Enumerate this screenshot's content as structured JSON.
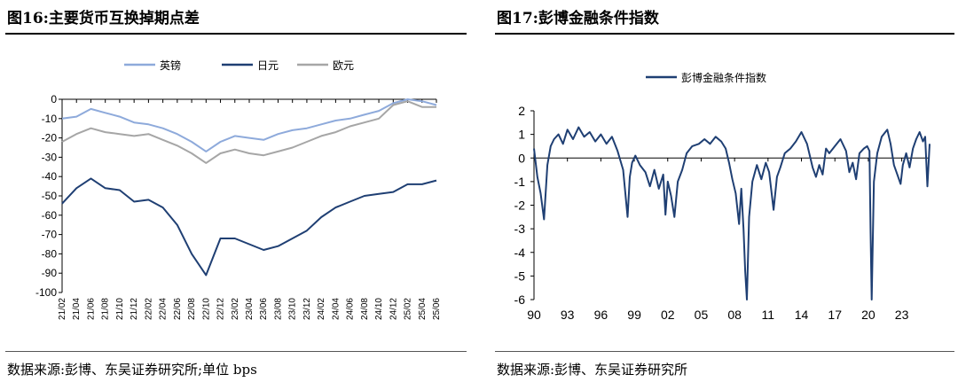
{
  "left": {
    "title": "图16:主要货币互换掉期点差",
    "source": "数据来源:彭博、东吴证券研究所;单位 bps"
  },
  "right": {
    "title": "图17:彭博金融条件指数",
    "source": "数据来源:彭博、东吴证券研究所"
  },
  "chart_data": [
    {
      "type": "line",
      "ylim": [
        -100,
        0
      ],
      "yticks": [
        0,
        -10,
        -20,
        -30,
        -40,
        -50,
        -60,
        -70,
        -80,
        -90,
        -100
      ],
      "x": [
        "21/02",
        "21/04",
        "21/06",
        "21/08",
        "21/10",
        "21/12",
        "22/02",
        "22/04",
        "22/06",
        "22/08",
        "22/10",
        "22/12",
        "23/02",
        "23/04",
        "23/06",
        "23/08",
        "23/10",
        "23/12",
        "24/02",
        "24/04",
        "24/06",
        "24/08",
        "24/10",
        "24/12",
        "25/02",
        "25/04",
        "25/06"
      ],
      "legend_position": "top",
      "series": [
        {
          "name": "英镑",
          "color": "#8eaadb",
          "values": [
            -10,
            -9,
            -5,
            -7,
            -9,
            -12,
            -13,
            -15,
            -18,
            -22,
            -27,
            -22,
            -19,
            -20,
            -21,
            -18,
            -16,
            -15,
            -13,
            -11,
            -10,
            -8,
            -6,
            -2,
            0,
            -1,
            -3
          ]
        },
        {
          "name": "日元",
          "color": "#1f3f73",
          "values": [
            -54,
            -46,
            -41,
            -46,
            -47,
            -53,
            -52,
            -56,
            -65,
            -80,
            -91,
            -72,
            -72,
            -75,
            -78,
            -76,
            -72,
            -68,
            -61,
            -56,
            -53,
            -50,
            -49,
            -48,
            -44,
            -44,
            -42
          ]
        },
        {
          "name": "欧元",
          "color": "#a6a6a6",
          "values": [
            -22,
            -18,
            -15,
            -17,
            -18,
            -19,
            -18,
            -21,
            -24,
            -28,
            -33,
            -28,
            -26,
            -28,
            -29,
            -27,
            -25,
            -22,
            -19,
            -17,
            -14,
            -12,
            -10,
            -3,
            -1,
            -4,
            -4
          ]
        }
      ]
    },
    {
      "type": "line",
      "ylim": [
        -6,
        2
      ],
      "yticks": [
        2,
        1,
        0,
        -1,
        -2,
        -3,
        -4,
        -5,
        -6
      ],
      "x_ticks": [
        "90",
        "93",
        "96",
        "99",
        "02",
        "05",
        "08",
        "11",
        "14",
        "17",
        "20",
        "23"
      ],
      "x_range": [
        1990,
        2025.5
      ],
      "legend_position": "top-center",
      "series": [
        {
          "name": "彭博金融条件指数",
          "color": "#1f3f73",
          "x": [
            1990.0,
            1990.3,
            1990.6,
            1990.9,
            1991.2,
            1991.5,
            1991.8,
            1992.2,
            1992.6,
            1993.0,
            1993.5,
            1994.0,
            1994.5,
            1995.0,
            1995.5,
            1996.0,
            1996.5,
            1997.0,
            1997.5,
            1998.0,
            1998.4,
            1998.6,
            1998.8,
            1999.1,
            1999.5,
            2000.0,
            2000.4,
            2000.8,
            2001.2,
            2001.6,
            2001.8,
            2002.0,
            2002.3,
            2002.6,
            2002.9,
            2003.3,
            2003.7,
            2004.2,
            2004.8,
            2005.3,
            2005.8,
            2006.3,
            2006.8,
            2007.2,
            2007.5,
            2007.8,
            2008.1,
            2008.4,
            2008.6,
            2008.8,
            2008.95,
            2009.1,
            2009.3,
            2009.6,
            2010.0,
            2010.4,
            2010.8,
            2011.1,
            2011.5,
            2011.8,
            2012.1,
            2012.5,
            2013.0,
            2013.5,
            2014.0,
            2014.5,
            2015.0,
            2015.3,
            2015.6,
            2015.9,
            2016.2,
            2016.5,
            2017.0,
            2017.5,
            2018.0,
            2018.3,
            2018.6,
            2018.9,
            2019.2,
            2019.6,
            2019.9,
            2020.1,
            2020.2,
            2020.3,
            2020.5,
            2020.8,
            2021.2,
            2021.7,
            2022.0,
            2022.3,
            2022.6,
            2022.9,
            2023.1,
            2023.4,
            2023.7,
            2024.0,
            2024.3,
            2024.6,
            2024.9,
            2025.1,
            2025.3,
            2025.5
          ],
          "values": [
            0.4,
            -0.8,
            -1.5,
            -2.6,
            -0.3,
            0.5,
            0.8,
            1.0,
            0.6,
            1.2,
            0.8,
            1.3,
            0.9,
            1.1,
            0.7,
            1.0,
            0.6,
            0.9,
            0.3,
            -0.5,
            -2.5,
            -0.8,
            -0.2,
            0.1,
            -0.3,
            -0.6,
            -1.2,
            -0.5,
            -1.3,
            -0.7,
            -2.4,
            -1.0,
            -1.6,
            -2.5,
            -1.0,
            -0.5,
            0.2,
            0.5,
            0.6,
            0.8,
            0.6,
            0.9,
            0.7,
            0.4,
            -0.2,
            -0.9,
            -1.5,
            -2.8,
            -1.3,
            -3.0,
            -4.8,
            -6.0,
            -2.5,
            -1.0,
            -0.3,
            -0.9,
            -0.2,
            -0.6,
            -2.2,
            -0.8,
            -0.4,
            0.2,
            0.4,
            0.7,
            1.1,
            0.6,
            -0.4,
            -0.8,
            -0.3,
            -0.7,
            0.4,
            0.2,
            0.5,
            0.8,
            0.3,
            -0.6,
            -0.2,
            -0.9,
            0.2,
            0.4,
            0.5,
            0.3,
            -3.0,
            -6.0,
            -1.0,
            0.2,
            0.9,
            1.2,
            0.6,
            -0.3,
            -0.7,
            -1.1,
            -0.3,
            0.2,
            -0.4,
            0.4,
            0.8,
            1.1,
            0.7,
            0.9,
            -1.2,
            0.6
          ]
        }
      ]
    }
  ]
}
